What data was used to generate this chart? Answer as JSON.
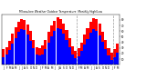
{
  "title": "Milwaukee Weather Outdoor Temperature  Monthly High/Low",
  "months": [
    "J",
    "F",
    "M",
    "A",
    "M",
    "J",
    "J",
    "A",
    "S",
    "O",
    "N",
    "D",
    "J",
    "F",
    "M",
    "A",
    "M",
    "J",
    "J",
    "A",
    "S",
    "O",
    "N",
    "D",
    "J",
    "F",
    "M",
    "A",
    "M",
    "J",
    "J",
    "A",
    "S",
    "O",
    "N",
    "D",
    "J",
    "F",
    "M"
  ],
  "highs": [
    28,
    32,
    42,
    55,
    67,
    76,
    82,
    80,
    72,
    60,
    45,
    32,
    30,
    34,
    45,
    58,
    70,
    78,
    84,
    82,
    74,
    62,
    47,
    33,
    25,
    29,
    40,
    54,
    66,
    77,
    83,
    81,
    73,
    59,
    44,
    30,
    22,
    28,
    38
  ],
  "lows": [
    14,
    18,
    27,
    38,
    48,
    58,
    64,
    62,
    54,
    42,
    30,
    18,
    16,
    19,
    28,
    40,
    50,
    60,
    66,
    64,
    56,
    44,
    31,
    19,
    12,
    15,
    25,
    36,
    46,
    57,
    63,
    61,
    53,
    41,
    28,
    16,
    8,
    13,
    22
  ],
  "high_color": "#ff0000",
  "low_color": "#0000ff",
  "bg_color": "#ffffff",
  "ylim_min": 0,
  "ylim_max": 90,
  "yticks": [
    10,
    20,
    30,
    40,
    50,
    60,
    70,
    80
  ],
  "ytick_labels": [
    "10",
    "20",
    "30",
    "40",
    "50",
    "60",
    "70",
    "80"
  ],
  "dashed_vlines": [
    24.5,
    36.5
  ],
  "bar_width": 0.42,
  "legend_items": [
    "Lo",
    "Hi"
  ],
  "legend_colors": [
    "#0000ff",
    "#ff0000"
  ]
}
